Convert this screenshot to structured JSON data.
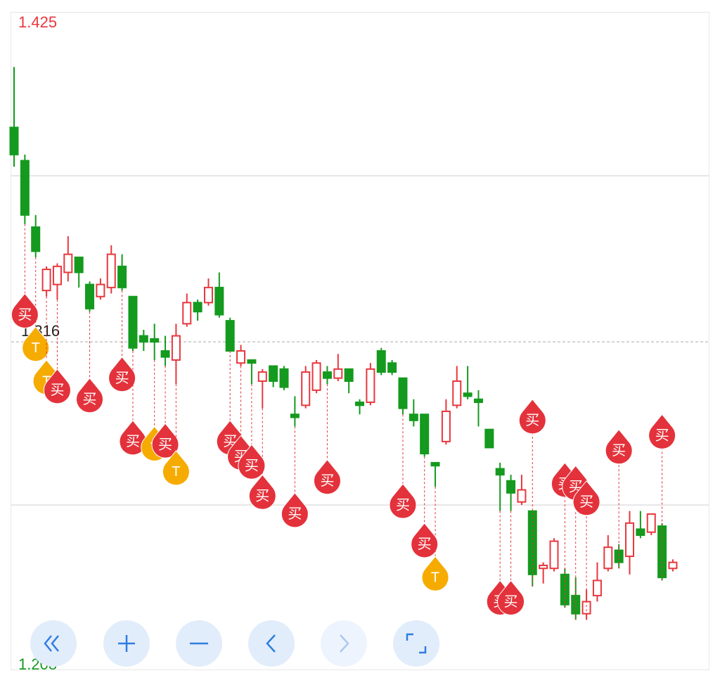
{
  "chart_data": {
    "type": "candlestick",
    "ylim": [
      1.208,
      1.425
    ],
    "yticks": [
      1.425,
      1.208
    ],
    "grid_lines": [
      1.371,
      1.262
    ],
    "ref_line": 1.316,
    "up_color": "#e8373e",
    "down_color": "#149a1e",
    "open": [
      1.387,
      1.376,
      1.354,
      1.333,
      1.335,
      1.339,
      1.344,
      1.335,
      1.331,
      1.334,
      1.341,
      1.331,
      1.318,
      1.317,
      1.313,
      1.31,
      1.322,
      1.329,
      1.329,
      1.334,
      1.323,
      1.309,
      1.31,
      1.303,
      1.308,
      1.307,
      1.292,
      1.295,
      1.3,
      1.306,
      1.304,
      1.307,
      1.296,
      1.296,
      1.313,
      1.309,
      1.304,
      1.292,
      1.292,
      1.276,
      1.283,
      1.295,
      1.299,
      1.297,
      1.287,
      1.274,
      1.27,
      1.263,
      1.26,
      1.241,
      1.241,
      1.239,
      1.232,
      1.226,
      1.232,
      1.241,
      1.247,
      1.245,
      1.254,
      1.253,
      1.255,
      1.241
    ],
    "high": [
      1.407,
      1.378,
      1.358,
      1.341,
      1.342,
      1.351,
      1.344,
      1.336,
      1.337,
      1.348,
      1.345,
      1.331,
      1.32,
      1.322,
      1.318,
      1.322,
      1.332,
      1.33,
      1.337,
      1.339,
      1.324,
      1.315,
      1.31,
      1.307,
      1.308,
      1.308,
      1.298,
      1.308,
      1.31,
      1.308,
      1.312,
      1.307,
      1.297,
      1.309,
      1.314,
      1.31,
      1.304,
      1.297,
      1.292,
      1.276,
      1.297,
      1.308,
      1.308,
      1.3,
      1.287,
      1.276,
      1.272,
      1.272,
      1.26,
      1.243,
      1.251,
      1.241,
      1.238,
      1.234,
      1.243,
      1.252,
      1.249,
      1.26,
      1.26,
      1.259,
      1.256,
      1.244
    ],
    "low": [
      1.374,
      1.355,
      1.344,
      1.331,
      1.33,
      1.336,
      1.334,
      1.326,
      1.33,
      1.332,
      1.333,
      1.313,
      1.313,
      1.31,
      1.308,
      1.302,
      1.321,
      1.323,
      1.328,
      1.324,
      1.313,
      1.308,
      1.302,
      1.294,
      1.301,
      1.3,
      1.288,
      1.294,
      1.299,
      1.302,
      1.303,
      1.299,
      1.292,
      1.295,
      1.305,
      1.305,
      1.292,
      1.288,
      1.278,
      1.268,
      1.282,
      1.294,
      1.297,
      1.288,
      1.281,
      1.26,
      1.26,
      1.262,
      1.235,
      1.236,
      1.24,
      1.228,
      1.224,
      1.224,
      1.23,
      1.24,
      1.241,
      1.239,
      1.251,
      1.252,
      1.237,
      1.24
    ],
    "close": [
      1.378,
      1.358,
      1.346,
      1.34,
      1.341,
      1.345,
      1.339,
      1.327,
      1.335,
      1.345,
      1.334,
      1.314,
      1.316,
      1.316,
      1.311,
      1.318,
      1.329,
      1.326,
      1.334,
      1.325,
      1.313,
      1.313,
      1.309,
      1.306,
      1.303,
      1.301,
      1.291,
      1.306,
      1.309,
      1.304,
      1.307,
      1.303,
      1.295,
      1.307,
      1.306,
      1.306,
      1.294,
      1.29,
      1.279,
      1.275,
      1.293,
      1.303,
      1.298,
      1.296,
      1.281,
      1.272,
      1.266,
      1.267,
      1.239,
      1.242,
      1.25,
      1.229,
      1.226,
      1.23,
      1.237,
      1.248,
      1.243,
      1.256,
      1.252,
      1.259,
      1.238,
      1.243
    ],
    "markers": [
      {
        "index": 1,
        "label": "买",
        "price": 1.325
      },
      {
        "index": 2,
        "label": "T",
        "price": 1.314
      },
      {
        "index": 3,
        "label": "T",
        "price": 1.303
      },
      {
        "index": 4,
        "label": "买",
        "price": 1.3
      },
      {
        "index": 7,
        "label": "买",
        "price": 1.297
      },
      {
        "index": 10,
        "label": "买",
        "price": 1.304
      },
      {
        "index": 11,
        "label": "买",
        "price": 1.283
      },
      {
        "index": 13,
        "label": "T",
        "price": 1.281
      },
      {
        "index": 14,
        "label": "买",
        "price": 1.282
      },
      {
        "index": 15,
        "label": "T",
        "price": 1.273
      },
      {
        "index": 20,
        "label": "买",
        "price": 1.283
      },
      {
        "index": 21,
        "label": "买",
        "price": 1.278
      },
      {
        "index": 22,
        "label": "买",
        "price": 1.275
      },
      {
        "index": 23,
        "label": "买",
        "price": 1.265
      },
      {
        "index": 26,
        "label": "买",
        "price": 1.259
      },
      {
        "index": 29,
        "label": "买",
        "price": 1.27
      },
      {
        "index": 36,
        "label": "买",
        "price": 1.262
      },
      {
        "index": 38,
        "label": "买",
        "price": 1.249
      },
      {
        "index": 39,
        "label": "T",
        "price": 1.238
      },
      {
        "index": 45,
        "label": "买",
        "price": 1.23
      },
      {
        "index": 46,
        "label": "买",
        "price": 1.23
      },
      {
        "index": 48,
        "label": "买",
        "price": 1.29
      },
      {
        "index": 51,
        "label": "买",
        "price": 1.269
      },
      {
        "index": 52,
        "label": "买",
        "price": 1.268
      },
      {
        "index": 53,
        "label": "买",
        "price": 1.263
      },
      {
        "index": 56,
        "label": "买",
        "price": 1.28
      },
      {
        "index": 60,
        "label": "买",
        "price": 1.285
      }
    ]
  }
}
